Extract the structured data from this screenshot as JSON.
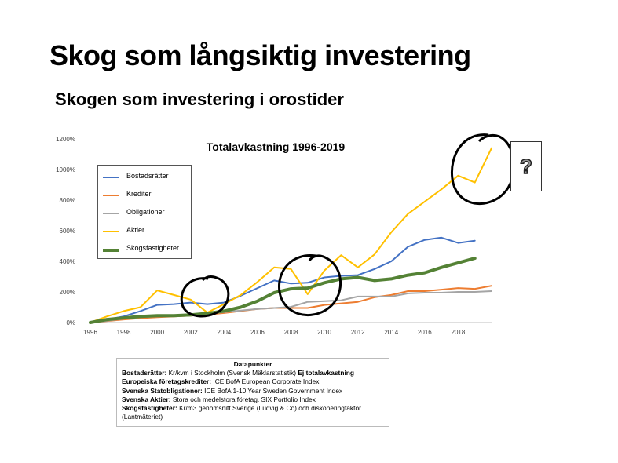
{
  "slide": {
    "title": "Skog som långsiktig investering",
    "subtitle": "Skogen som investering i orostider"
  },
  "chart_data": {
    "type": "line",
    "title": "Totalavkastning 1996-2019",
    "x": [
      1996,
      1997,
      1998,
      1999,
      2000,
      2001,
      2002,
      2003,
      2004,
      2005,
      2006,
      2007,
      2008,
      2009,
      2010,
      2011,
      2012,
      2013,
      2014,
      2015,
      2016,
      2017,
      2018,
      2019,
      2020
    ],
    "x_ticks": [
      "1996",
      "1998",
      "2000",
      "2002",
      "2004",
      "2006",
      "2008",
      "2010",
      "2012",
      "2014",
      "2016",
      "2018"
    ],
    "y_ticks": [
      "0%",
      "200%",
      "400%",
      "600%",
      "800%",
      "1000%",
      "1200%"
    ],
    "ylim": [
      0,
      1200
    ],
    "grid": false,
    "legend_position": "upper-left",
    "series": [
      {
        "name": "Bostadsrätter",
        "color": "#4472C4",
        "width": 2,
        "values": [
          0,
          20,
          40,
          75,
          115,
          120,
          130,
          120,
          130,
          175,
          225,
          275,
          255,
          260,
          295,
          305,
          310,
          350,
          400,
          495,
          540,
          555,
          520,
          535,
          null
        ]
      },
      {
        "name": "Krediter",
        "color": "#ED7D31",
        "width": 2,
        "values": [
          0,
          10,
          20,
          28,
          35,
          40,
          45,
          52,
          62,
          75,
          88,
          95,
          95,
          95,
          115,
          125,
          135,
          165,
          180,
          205,
          205,
          215,
          225,
          220,
          240
        ]
      },
      {
        "name": "Obligationer",
        "color": "#A5A5A5",
        "width": 2,
        "values": [
          0,
          12,
          25,
          35,
          40,
          42,
          45,
          58,
          68,
          78,
          88,
          95,
          102,
          135,
          140,
          145,
          170,
          170,
          170,
          190,
          195,
          195,
          200,
          200,
          205
        ]
      },
      {
        "name": "Aktier",
        "color": "#FFC000",
        "width": 2,
        "values": [
          0,
          40,
          75,
          100,
          210,
          180,
          150,
          65,
          120,
          180,
          265,
          360,
          350,
          185,
          340,
          440,
          360,
          445,
          590,
          710,
          790,
          870,
          960,
          915,
          1140
        ]
      },
      {
        "name": "Skogsfastigheter",
        "color": "#548235",
        "width": 4,
        "values": [
          0,
          20,
          30,
          40,
          45,
          45,
          50,
          60,
          75,
          100,
          140,
          195,
          220,
          225,
          260,
          285,
          295,
          275,
          285,
          310,
          325,
          360,
          390,
          420,
          null
        ]
      }
    ]
  },
  "question_mark": "?",
  "notes": {
    "title": "Datapunkter",
    "lines": [
      {
        "label": "Bostadsrätter:",
        "text": " Kr/kvm i Stockholm (Svensk Mäklarstatistik) ",
        "bold_suffix": "Ej totalavkastning"
      },
      {
        "label": "Europeiska företagskrediter:",
        "text": " ICE BofA European Corporate Index",
        "bold_suffix": ""
      },
      {
        "label": "Svenska Statobligationer:",
        "text": " ICE BofA 1-10 Year Sweden Government Index",
        "bold_suffix": ""
      },
      {
        "label": "Svenska Aktier:",
        "text": "  Stora och medelstora företag. SIX Portfolio Index",
        "bold_suffix": ""
      },
      {
        "label": "Skogsfastigheter:",
        "text": " Kr/m3 genomsnitt Sverige (Ludvig & Co) och diskoneringfaktor",
        "bold_suffix": ""
      },
      {
        "label": "",
        "text": "(Lantmäteriet)",
        "bold_suffix": ""
      }
    ]
  }
}
